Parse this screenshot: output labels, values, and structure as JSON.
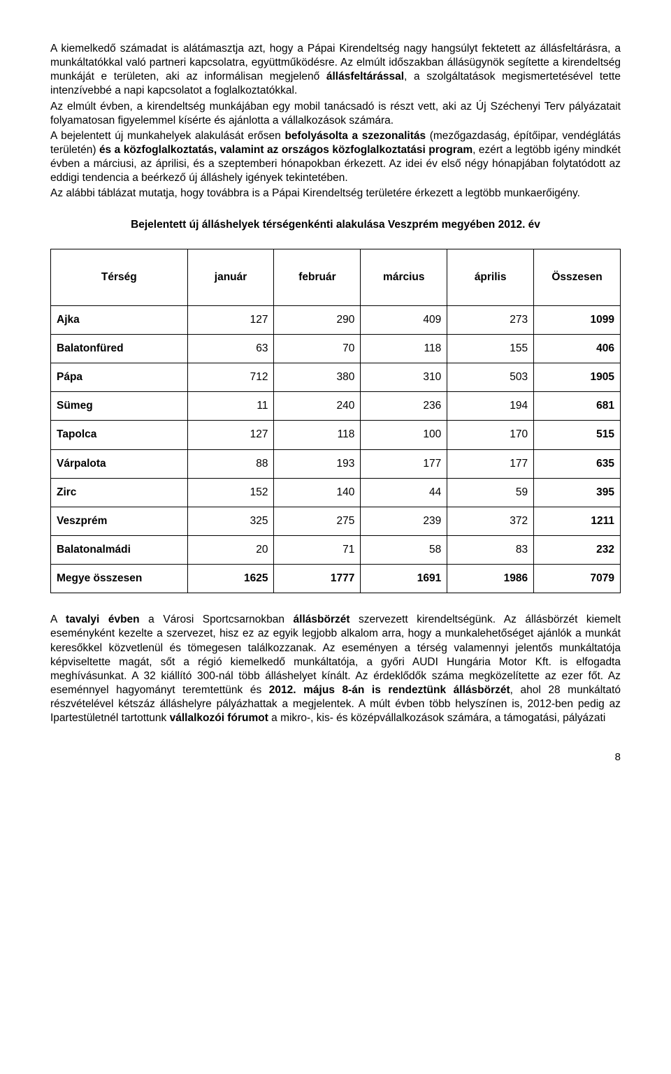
{
  "paragraphs": {
    "p1": "A kiemelkedő számadat is alátámasztja azt, hogy a Pápai Kirendeltség nagy hangsúlyt fektetett az állásfeltárásra, a munkáltatókkal való partneri kapcsolatra, együttműködésre. Az elmúlt időszakban állásügynök segítette a kirendeltség munkáját e területen, aki az informálisan megjelenő ",
    "p1_b1": "állásfeltárással",
    "p1_c1": ", a szolgáltatások megismertetésével tette intenzívebbé a napi kapcsolatot a foglalkoztatókkal.",
    "p2": "Az elmúlt évben, a kirendeltség munkájában egy mobil tanácsadó is részt vett, aki az Új Széchenyi Terv pályázatait folyamatosan figyelemmel kísérte és ajánlotta a vállalkozások számára.",
    "p3_a": "A bejelentett új munkahelyek alakulását erősen ",
    "p3_b1": "befolyásolta a szezonalitás",
    "p3_c1": " (mezőgazdaság, építőipar, vendéglátás területén) ",
    "p3_b2": "és a közfoglalkoztatás, valamint az országos közfoglalkoztatási program",
    "p3_c2": ", ezért a legtöbb igény mindkét évben a márciusi, az áprilisi, és a szeptemberi hónapokban érkezett. Az idei év első négy hónapjában folytatódott az eddigi tendencia a beérkező új álláshely igények tekintetében.",
    "p4": "Az alábbi táblázat mutatja, hogy továbbra is a Pápai Kirendeltség területére érkezett a legtöbb munkaerőigény.",
    "title": "Bejelentett új álláshelyek térségenkénti alakulása Veszprém megyében 2012. év",
    "p5_a": "A ",
    "p5_b1": "tavalyi évben",
    "p5_c1": " a Városi Sportcsarnokban ",
    "p5_b2": "állásbörzét",
    "p5_c2": " szervezett kirendeltségünk. Az állásbörzét kiemelt eseményként kezelte a szervezet, hisz ez az egyik legjobb alkalom arra, hogy a munkalehetőséget ajánlók a munkát keresőkkel közvetlenül és tömegesen találkozzanak. Az eseményen a térség valamennyi jelentős munkáltatója képviseltette magát, sőt a régió kiemelkedő munkáltatója, a győri AUDI Hungária Motor Kft. is elfogadta meghívásunkat. A 32 kiállító 300-nál több álláshelyet kínált. Az érdeklődők száma megközelítette az ezer főt. Az eseménnyel hagyományt teremtettünk és ",
    "p5_b3": "2012. május 8-án is rendeztünk állásbörzét",
    "p5_c3": ", ahol 28 munkáltató részvételével kétszáz álláshelyre pályázhattak a megjelentek. A múlt évben több helyszínen is, 2012-ben pedig az Ipartestületnél tartottunk ",
    "p5_b4": "vállalkozói fórumot",
    "p5_c4": " a mikro-, kis- és középvállalkozások számára, a támogatási, pályázati"
  },
  "table": {
    "headers": [
      "Térség",
      "január",
      "február",
      "március",
      "április",
      "Összesen"
    ],
    "rows": [
      {
        "label": "Ajka",
        "v": [
          "127",
          "290",
          "409",
          "273",
          "1099"
        ]
      },
      {
        "label": "Balatonfüred",
        "v": [
          "63",
          "70",
          "118",
          "155",
          "406"
        ]
      },
      {
        "label": "Pápa",
        "v": [
          "712",
          "380",
          "310",
          "503",
          "1905"
        ]
      },
      {
        "label": "Sümeg",
        "v": [
          "11",
          "240",
          "236",
          "194",
          "681"
        ]
      },
      {
        "label": "Tapolca",
        "v": [
          "127",
          "118",
          "100",
          "170",
          "515"
        ]
      },
      {
        "label": "Várpalota",
        "v": [
          "88",
          "193",
          "177",
          "177",
          "635"
        ]
      },
      {
        "label": "Zirc",
        "v": [
          "152",
          "140",
          "44",
          "59",
          "395"
        ]
      },
      {
        "label": "Veszprém",
        "v": [
          "325",
          "275",
          "239",
          "372",
          "1211"
        ]
      },
      {
        "label": "Balatonalmádi",
        "v": [
          "20",
          "71",
          "58",
          "83",
          "232"
        ]
      }
    ],
    "total": {
      "label": "Megye összesen",
      "v": [
        "1625",
        "1777",
        "1691",
        "1986",
        "7079"
      ]
    }
  },
  "pagenum": "8"
}
